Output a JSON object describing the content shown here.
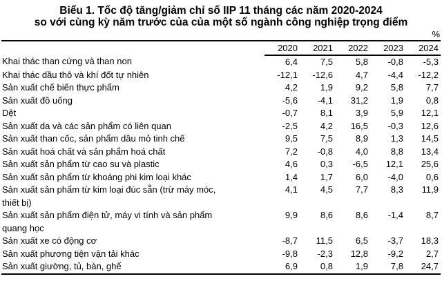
{
  "title": {
    "line1": "Biểu 1. Tốc độ tăng/giảm chỉ số IIP 11 tháng các năm 2020-2024",
    "line2": "so với cùng kỳ năm trước của của một số ngành công nghiệp trọng điểm"
  },
  "unit_label": "%",
  "table": {
    "year_headers": [
      "2020",
      "2021",
      "2022",
      "2023",
      "2024"
    ],
    "rows": [
      {
        "label": "Khai thác than cứng và than non",
        "values": [
          "6,4",
          "7,5",
          "5,8",
          "-0,8",
          "-5,3"
        ]
      },
      {
        "label": "Khai thác dầu thô và khí đốt tự nhiên",
        "values": [
          "-12,1",
          "-12,6",
          "4,7",
          "-4,4",
          "-12,2"
        ]
      },
      {
        "label": "Sản xuất chế biến thực phẩm",
        "values": [
          "4,2",
          "1,9",
          "9,2",
          "5,8",
          "7,7"
        ]
      },
      {
        "label": "Sản xuất đồ uống",
        "values": [
          "-5,6",
          "-4,1",
          "31,2",
          "1,9",
          "0,8"
        ]
      },
      {
        "label": "Dệt",
        "values": [
          "-0,7",
          "8,1",
          "3,9",
          "5,9",
          "12,1"
        ]
      },
      {
        "label": "Sản xuất da và các sản phẩm có liên quan",
        "values": [
          "-2,5",
          "4,2",
          "16,5",
          "-0,3",
          "12,6"
        ]
      },
      {
        "label": "Sản xuất than cốc, sản phẩm dầu mỏ tinh chế",
        "values": [
          "9,5",
          "7,5",
          "8,9",
          "1,3",
          "14,5"
        ]
      },
      {
        "label": "Sản xuất hoá chất và sản phẩm hoá chất",
        "values": [
          "7,2",
          "-0,8",
          "4,0",
          "8,8",
          "13,4"
        ]
      },
      {
        "label": "Sản xuất sản phẩm từ cao su và plastic",
        "values": [
          "4,6",
          "0,3",
          "-6,5",
          "12,1",
          "25,6"
        ]
      },
      {
        "label": "Sản xuất sản phẩm từ khoáng phi kim loại khác",
        "values": [
          "1,4",
          "1,7",
          "6,0",
          "-4,0",
          "0,6"
        ]
      },
      {
        "label": "Sản xuất sản phẩm từ kim loại đúc sẵn (trừ máy móc,\nthiết bị)",
        "values": [
          "4,1",
          "4,5",
          "7,7",
          "8,3",
          "11,9"
        ]
      },
      {
        "label": "Sản xuất sản phẩm điện tử, máy vi tính và sản phẩm\nquang học",
        "values": [
          "9,9",
          "8,6",
          "8,6",
          "-1,4",
          "8,7"
        ]
      },
      {
        "label": "Sản xuất xe có động cơ",
        "values": [
          "-8,7",
          "11,5",
          "6,5",
          "-3,7",
          "18,3"
        ]
      },
      {
        "label": "Sản xuất phương tiện vận tải khác",
        "values": [
          "-9,8",
          "-2,3",
          "12,8",
          "-9,2",
          "2,7"
        ]
      },
      {
        "label": "Sản xuất giường, tủ, bàn, ghế",
        "values": [
          "6,9",
          "0,8",
          "1,9",
          "7,8",
          "24,7"
        ]
      }
    ]
  },
  "chart_data": {
    "type": "table",
    "title": "Biểu 1. Tốc độ tăng/giảm chỉ số IIP 11 tháng các năm 2020-2024 so với cùng kỳ năm trước của của một số ngành công nghiệp trọng điểm",
    "unit": "%",
    "columns": [
      "2020",
      "2021",
      "2022",
      "2023",
      "2024"
    ],
    "rows": [
      {
        "label": "Khai thác than cứng và than non",
        "values": [
          6.4,
          7.5,
          5.8,
          -0.8,
          -5.3
        ]
      },
      {
        "label": "Khai thác dầu thô và khí đốt tự nhiên",
        "values": [
          -12.1,
          -12.6,
          4.7,
          -4.4,
          -12.2
        ]
      },
      {
        "label": "Sản xuất chế biến thực phẩm",
        "values": [
          4.2,
          1.9,
          9.2,
          5.8,
          7.7
        ]
      },
      {
        "label": "Sản xuất đồ uống",
        "values": [
          -5.6,
          -4.1,
          31.2,
          1.9,
          0.8
        ]
      },
      {
        "label": "Dệt",
        "values": [
          -0.7,
          8.1,
          3.9,
          5.9,
          12.1
        ]
      },
      {
        "label": "Sản xuất da và các sản phẩm có liên quan",
        "values": [
          -2.5,
          4.2,
          16.5,
          -0.3,
          12.6
        ]
      },
      {
        "label": "Sản xuất than cốc, sản phẩm dầu mỏ tinh chế",
        "values": [
          9.5,
          7.5,
          8.9,
          1.3,
          14.5
        ]
      },
      {
        "label": "Sản xuất hoá chất và sản phẩm hoá chất",
        "values": [
          7.2,
          -0.8,
          4.0,
          8.8,
          13.4
        ]
      },
      {
        "label": "Sản xuất sản phẩm từ cao su và plastic",
        "values": [
          4.6,
          0.3,
          -6.5,
          12.1,
          25.6
        ]
      },
      {
        "label": "Sản xuất sản phẩm từ khoáng phi kim loại khác",
        "values": [
          1.4,
          1.7,
          6.0,
          -4.0,
          0.6
        ]
      },
      {
        "label": "Sản xuất sản phẩm từ kim loại đúc sẵn (trừ máy móc, thiết bị)",
        "values": [
          4.1,
          4.5,
          7.7,
          8.3,
          11.9
        ]
      },
      {
        "label": "Sản xuất sản phẩm điện tử, máy vi tính và sản phẩm quang học",
        "values": [
          9.9,
          8.6,
          8.6,
          -1.4,
          8.7
        ]
      },
      {
        "label": "Sản xuất xe có động cơ",
        "values": [
          -8.7,
          11.5,
          6.5,
          -3.7,
          18.3
        ]
      },
      {
        "label": "Sản xuất phương tiện vận tải khác",
        "values": [
          -9.8,
          -2.3,
          12.8,
          -9.2,
          2.7
        ]
      },
      {
        "label": "Sản xuất giường, tủ, bàn, ghế",
        "values": [
          6.9,
          0.8,
          1.9,
          7.8,
          24.7
        ]
      }
    ]
  }
}
